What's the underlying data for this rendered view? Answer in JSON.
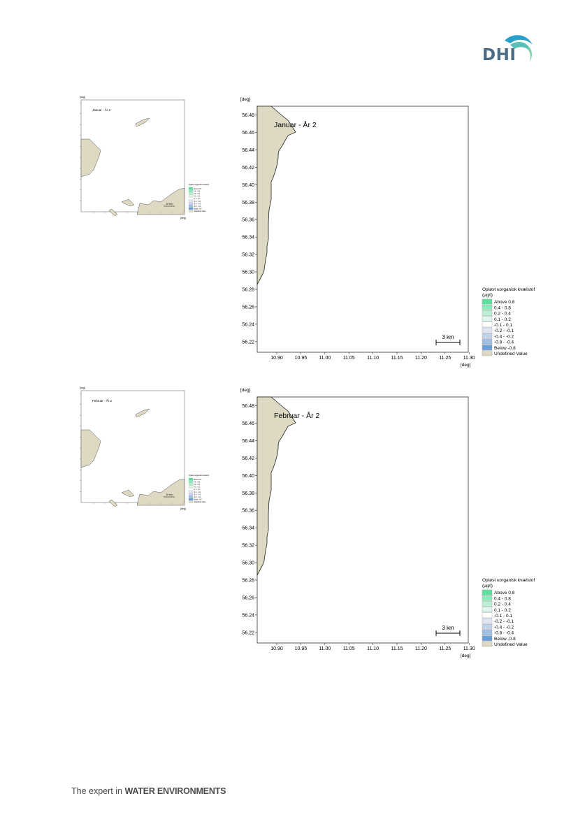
{
  "brand": {
    "logo_text": "DHI"
  },
  "footer": {
    "prefix": "The expert in ",
    "emphasis": "WATER ENVIRONMENTS"
  },
  "colors": {
    "land": "#ddd9c3",
    "legend": [
      "#57e39d",
      "#8eebbb",
      "#b8f1d3",
      "#ddf7ea",
      "#ffffff",
      "#dfe6f2",
      "#c2d3ea",
      "#9fbfe4",
      "#6a9fe0",
      "#ddd9c3"
    ]
  },
  "panels": [
    {
      "id": "jan",
      "small_title": "Januar - År 2",
      "title": "Januar - År 2",
      "unit_y": "[deg]",
      "unit_x": "[deg]",
      "scalebar": "3 km",
      "small_scalebar": "10 km"
    },
    {
      "id": "feb",
      "small_title": "Februar - År 2",
      "title": "Februar - År 2",
      "unit_y": "[deg]",
      "unit_x": "[deg]",
      "scalebar": "3 km",
      "small_scalebar": "10 km"
    }
  ],
  "map": {
    "x_ticks": [
      "10.90",
      "10.95",
      "11.00",
      "11.05",
      "11.10",
      "11.15",
      "11.20",
      "11.25",
      "11.30"
    ],
    "y_ticks": [
      "56.48",
      "56.46",
      "56.44",
      "56.42",
      "56.40",
      "56.38",
      "56.36",
      "56.34",
      "56.32",
      "56.30",
      "56.28",
      "56.26",
      "56.24",
      "56.22"
    ]
  },
  "legend": {
    "title": [
      "Opløst uorganisk kvælstof",
      "(µg/l)"
    ],
    "items": [
      "Above  0.8",
      "  0.4 -  0.8",
      "  0.2 -  0.4",
      "  0.1 -  0.2",
      " -0.1 -  0.1",
      " -0.2 - -0.1",
      " -0.4 - -0.2",
      " -0.8 - -0.4",
      "Below -0.8",
      "Undefined Value"
    ]
  }
}
